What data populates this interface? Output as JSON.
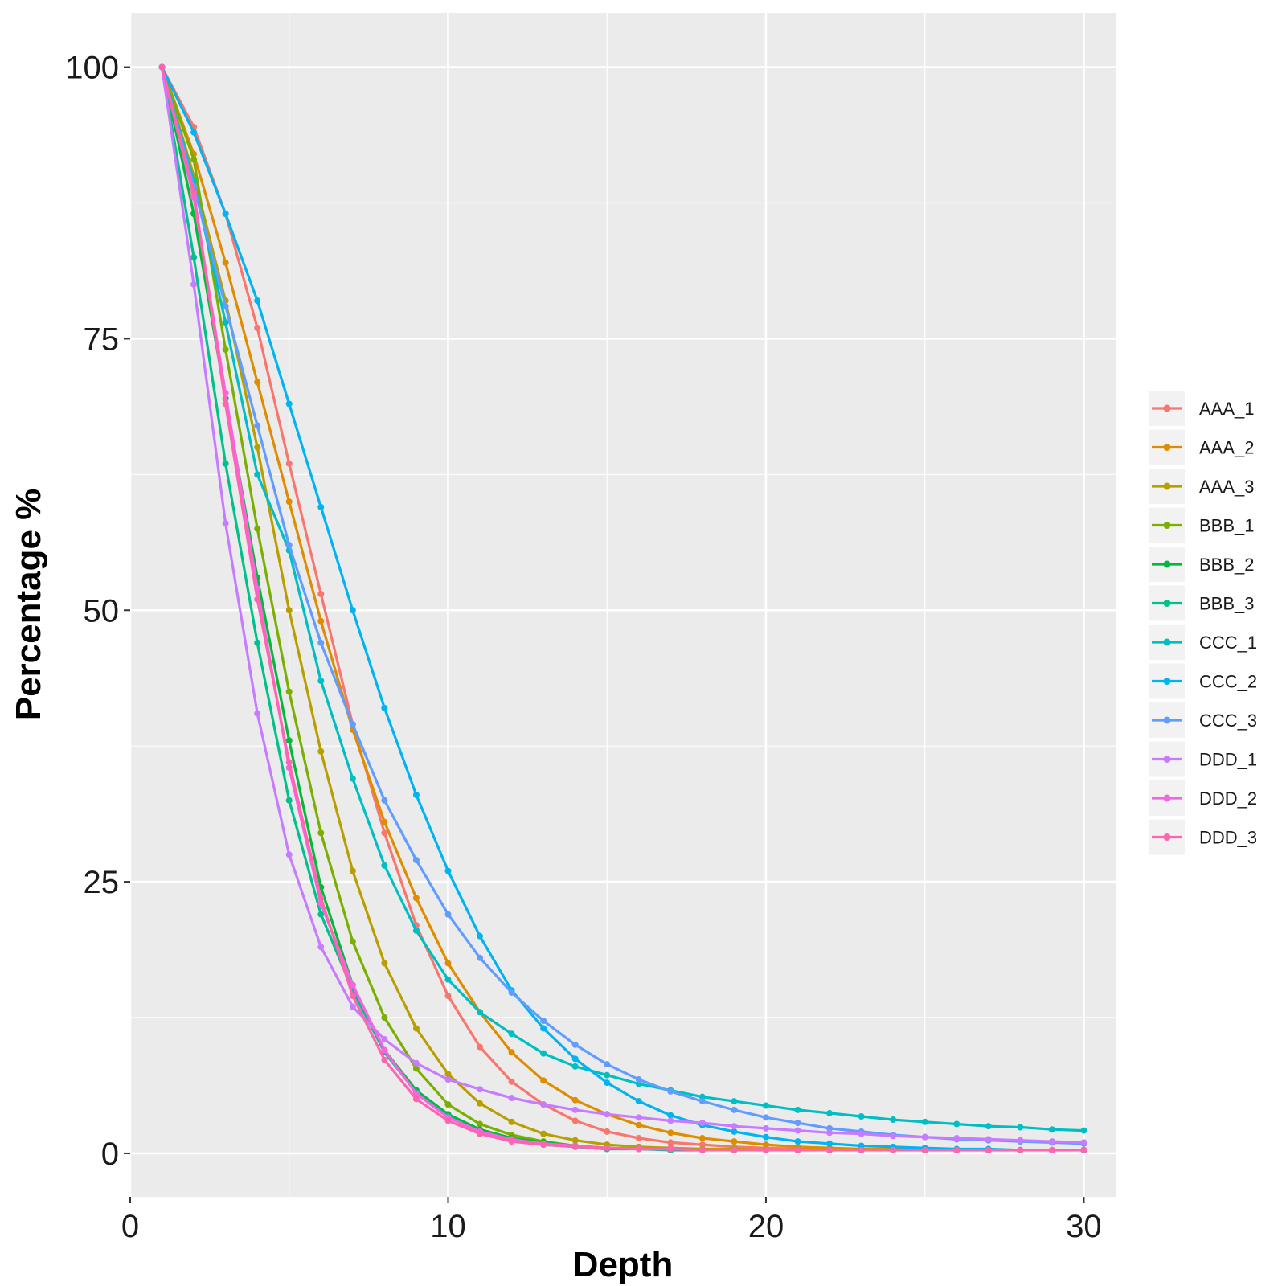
{
  "chart_data": {
    "type": "line",
    "xlabel": "Depth",
    "ylabel": "Percentage %",
    "xlim": [
      0,
      31
    ],
    "ylim": [
      -4,
      105
    ],
    "x_ticks": [
      "0",
      "10",
      "20",
      "30"
    ],
    "y_ticks": [
      "0",
      "25",
      "50",
      "75",
      "100"
    ],
    "grid": true,
    "legend_position": "right",
    "background_color": "#ebebeb",
    "x": [
      1,
      2,
      3,
      4,
      5,
      6,
      7,
      8,
      9,
      10,
      11,
      12,
      13,
      14,
      15,
      16,
      17,
      18,
      19,
      20,
      21,
      22,
      23,
      24,
      25,
      26,
      27,
      28,
      29,
      30
    ],
    "series": [
      {
        "name": "AAA_1",
        "color": "#F8766D",
        "values": [
          100,
          94.5,
          86.5,
          76,
          63.5,
          51.5,
          39.5,
          29.5,
          21,
          14.5,
          9.8,
          6.6,
          4.5,
          3,
          2,
          1.4,
          1,
          0.8,
          0.6,
          0.5,
          0.4,
          0.4,
          0.3,
          0.3,
          0.3,
          0.3,
          0.3,
          0.3,
          0.3,
          0.3
        ]
      },
      {
        "name": "AAA_2",
        "color": "#DE8C00",
        "values": [
          100,
          92,
          82,
          71,
          60,
          49,
          39,
          30.5,
          23.5,
          17.5,
          13,
          9.3,
          6.7,
          4.9,
          3.6,
          2.6,
          1.9,
          1.4,
          1.1,
          0.8,
          0.6,
          0.5,
          0.4,
          0.4,
          0.3,
          0.3,
          0.3,
          0.3,
          0.3,
          0.3
        ]
      },
      {
        "name": "AAA_3",
        "color": "#B79F00",
        "values": [
          100,
          90,
          78.5,
          65,
          50,
          37,
          26,
          17.5,
          11.5,
          7.3,
          4.6,
          2.9,
          1.8,
          1.2,
          0.8,
          0.6,
          0.5,
          0.4,
          0.4,
          0.3,
          0.3,
          0.3,
          0.3,
          0.3,
          0.3,
          0.3,
          0.3,
          0.3,
          0.3,
          0.3
        ]
      },
      {
        "name": "BBB_1",
        "color": "#7CAE00",
        "values": [
          100,
          91.5,
          74,
          57.5,
          42.5,
          29.5,
          19.5,
          12.5,
          7.8,
          4.5,
          2.7,
          1.7,
          1.1,
          0.7,
          0.5,
          0.4,
          0.4,
          0.3,
          0.3,
          0.3,
          0.3,
          0.3,
          0.3,
          0.3,
          0.3,
          0.3,
          0.3,
          0.3,
          0.3,
          0.3
        ]
      },
      {
        "name": "BBB_2",
        "color": "#00BA38",
        "values": [
          100,
          86.5,
          69.5,
          53,
          38,
          24.5,
          15.5,
          9.5,
          5.8,
          3.6,
          2.2,
          1.4,
          1,
          0.7,
          0.5,
          0.4,
          0.4,
          0.3,
          0.3,
          0.3,
          0.3,
          0.3,
          0.3,
          0.3,
          0.3,
          0.3,
          0.3,
          0.3,
          0.3,
          0.3
        ]
      },
      {
        "name": "BBB_3",
        "color": "#00C08B",
        "values": [
          100,
          82.5,
          63.5,
          47,
          32.5,
          22,
          15,
          9.3,
          5.6,
          3.4,
          2,
          1.2,
          0.8,
          0.6,
          0.4,
          0.4,
          0.3,
          0.3,
          0.3,
          0.3,
          0.3,
          0.3,
          0.3,
          0.3,
          0.3,
          0.3,
          0.3,
          0.3,
          0.3,
          0.3
        ]
      },
      {
        "name": "CCC_1",
        "color": "#00BFC4",
        "values": [
          100,
          89.5,
          76.5,
          62.5,
          55.5,
          43.5,
          34.5,
          26.5,
          20.5,
          16,
          13,
          11,
          9.2,
          8,
          7.2,
          6.4,
          5.8,
          5.2,
          4.8,
          4.4,
          4,
          3.7,
          3.4,
          3.1,
          2.9,
          2.7,
          2.5,
          2.4,
          2.2,
          2.1
        ]
      },
      {
        "name": "CCC_2",
        "color": "#00B4F0",
        "values": [
          100,
          94,
          86.5,
          78.5,
          69,
          59.5,
          50,
          41,
          33,
          26,
          20,
          15,
          11.5,
          8.7,
          6.5,
          4.8,
          3.5,
          2.6,
          2,
          1.5,
          1.1,
          0.9,
          0.7,
          0.6,
          0.5,
          0.4,
          0.4,
          0.3,
          0.3,
          0.3
        ]
      },
      {
        "name": "CCC_3",
        "color": "#619CFF",
        "values": [
          100,
          89,
          78,
          67,
          56,
          47,
          39.5,
          32.5,
          27,
          22,
          18,
          14.8,
          12.2,
          10,
          8.2,
          6.8,
          5.7,
          4.8,
          4,
          3.3,
          2.8,
          2.3,
          2,
          1.7,
          1.5,
          1.3,
          1.2,
          1.1,
          1,
          0.9
        ]
      },
      {
        "name": "DDD_1",
        "color": "#C77CFF",
        "values": [
          100,
          80,
          58,
          40.5,
          27.5,
          19,
          13.5,
          10.5,
          8.3,
          6.8,
          5.9,
          5.1,
          4.5,
          4,
          3.6,
          3.3,
          3,
          2.8,
          2.5,
          2.3,
          2.1,
          1.9,
          1.8,
          1.6,
          1.5,
          1.4,
          1.3,
          1.2,
          1.1,
          1
        ]
      },
      {
        "name": "DDD_2",
        "color": "#F564E3",
        "values": [
          100,
          88,
          70,
          52,
          35.5,
          23,
          15.5,
          9.5,
          5.5,
          3.3,
          2,
          1.3,
          0.9,
          0.7,
          0.5,
          0.4,
          0.4,
          0.3,
          0.3,
          0.3,
          0.3,
          0.3,
          0.3,
          0.3,
          0.3,
          0.3,
          0.3,
          0.3,
          0.3,
          0.3
        ]
      },
      {
        "name": "DDD_3",
        "color": "#FF64B0",
        "values": [
          100,
          88.5,
          69,
          51,
          36,
          23.5,
          14.5,
          8.6,
          5,
          3,
          1.8,
          1.1,
          0.8,
          0.6,
          0.5,
          0.4,
          0.4,
          0.3,
          0.3,
          0.3,
          0.3,
          0.3,
          0.3,
          0.3,
          0.3,
          0.3,
          0.3,
          0.3,
          0.3,
          0.3
        ]
      }
    ]
  }
}
